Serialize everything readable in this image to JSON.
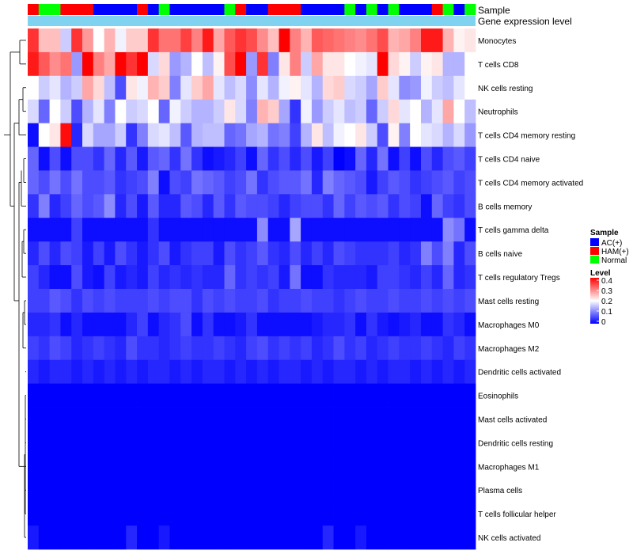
{
  "chart_data": {
    "type": "heatmap",
    "annotation_titles": {
      "sample": "Sample",
      "gene_expression": "Gene expression level"
    },
    "sample_groups": [
      "HAM(+)",
      "Normal",
      "Normal",
      "HAM(+)",
      "HAM(+)",
      "HAM(+)",
      "AC(+)",
      "AC(+)",
      "AC(+)",
      "AC(+)",
      "HAM(+)",
      "AC(+)",
      "Normal",
      "AC(+)",
      "AC(+)",
      "AC(+)",
      "AC(+)",
      "AC(+)",
      "Normal",
      "HAM(+)",
      "AC(+)",
      "AC(+)",
      "HAM(+)",
      "HAM(+)",
      "HAM(+)",
      "AC(+)",
      "AC(+)",
      "AC(+)",
      "AC(+)",
      "Normal",
      "AC(+)",
      "Normal",
      "AC(+)",
      "Normal",
      "AC(+)",
      "AC(+)",
      "AC(+)",
      "HAM(+)",
      "Normal",
      "AC(+)",
      "Normal"
    ],
    "rows": [
      {
        "name": "Monocytes",
        "values": [
          0.36,
          0.25,
          0.25,
          0.16,
          0.36,
          0.28,
          0.2,
          0.26,
          0.19,
          0.24,
          0.24,
          0.36,
          0.31,
          0.31,
          0.35,
          0.3,
          0.38,
          0.27,
          0.33,
          0.36,
          0.34,
          0.29,
          0.25,
          0.4,
          0.3,
          0.26,
          0.33,
          0.32,
          0.31,
          0.3,
          0.29,
          0.31,
          0.34,
          0.26,
          0.27,
          0.3,
          0.38,
          0.38,
          0.26,
          0.21,
          0.22
        ]
      },
      {
        "name": "T cells CD8",
        "values": [
          0.38,
          0.33,
          0.29,
          0.31,
          0.12,
          0.4,
          0.3,
          0.27,
          0.4,
          0.36,
          0.4,
          0.17,
          0.23,
          0.12,
          0.14,
          0.2,
          0.15,
          0.21,
          0.34,
          0.4,
          0.12,
          0.36,
          0.1,
          0.22,
          0.3,
          0.16,
          0.27,
          0.22,
          0.22,
          0.2,
          0.19,
          0.18,
          0.4,
          0.23,
          0.21,
          0.16,
          0.21,
          0.22,
          0.14,
          0.14,
          0.2
        ]
      },
      {
        "name": "NK cells resting",
        "values": [
          0.2,
          0.16,
          0.18,
          0.14,
          0.16,
          0.27,
          0.23,
          0.15,
          0.06,
          0.22,
          0.19,
          0.26,
          0.24,
          0.1,
          0.18,
          0.24,
          0.27,
          0.18,
          0.15,
          0.17,
          0.11,
          0.18,
          0.14,
          0.19,
          0.21,
          0.18,
          0.14,
          0.23,
          0.24,
          0.17,
          0.16,
          0.13,
          0.24,
          0.18,
          0.11,
          0.12,
          0.19,
          0.16,
          0.15,
          0.18,
          0.2
        ]
      },
      {
        "name": "Neutrophils",
        "values": [
          0.17,
          0.08,
          0.2,
          0.16,
          0.06,
          0.14,
          0.18,
          0.1,
          0.2,
          0.16,
          0.17,
          0.2,
          0.08,
          0.19,
          0.16,
          0.14,
          0.14,
          0.16,
          0.22,
          0.17,
          0.1,
          0.26,
          0.24,
          0.13,
          0.04,
          0.19,
          0.12,
          0.16,
          0.18,
          0.15,
          0.16,
          0.08,
          0.16,
          0.23,
          0.18,
          0.2,
          0.14,
          0.18,
          0.27,
          0.2,
          0.15
        ]
      },
      {
        "name": "T cells CD4 memory resting",
        "values": [
          0.01,
          0.2,
          0.22,
          0.39,
          0.03,
          0.17,
          0.13,
          0.13,
          0.16,
          0.04,
          0.1,
          0.17,
          0.18,
          0.15,
          0.07,
          0.14,
          0.15,
          0.15,
          0.08,
          0.09,
          0.13,
          0.14,
          0.09,
          0.1,
          0.05,
          0.14,
          0.22,
          0.15,
          0.19,
          0.2,
          0.22,
          0.16,
          0.06,
          0.21,
          0.1,
          0.2,
          0.18,
          0.17,
          0.14,
          0.17,
          0.12
        ]
      },
      {
        "name": "T cells CD4 naive",
        "values": [
          0.08,
          0.01,
          0.06,
          0.01,
          0.06,
          0.06,
          0.04,
          0.08,
          0.03,
          0.07,
          0.02,
          0.07,
          0.08,
          0.04,
          0.09,
          0.04,
          0.01,
          0.02,
          0.03,
          0.05,
          0.01,
          0.08,
          0.04,
          0.06,
          0.03,
          0.06,
          0.02,
          0.05,
          0.0,
          0.01,
          0.08,
          0.03,
          0.09,
          0.01,
          0.05,
          0.01,
          0.06,
          0.03,
          0.06,
          0.07,
          0.05
        ]
      },
      {
        "name": "T cells CD4 memory activated",
        "values": [
          0.08,
          0.06,
          0.09,
          0.06,
          0.09,
          0.06,
          0.06,
          0.07,
          0.04,
          0.05,
          0.06,
          0.1,
          0.01,
          0.06,
          0.05,
          0.09,
          0.08,
          0.07,
          0.05,
          0.06,
          0.09,
          0.04,
          0.06,
          0.07,
          0.07,
          0.09,
          0.03,
          0.1,
          0.08,
          0.07,
          0.06,
          0.02,
          0.05,
          0.07,
          0.06,
          0.04,
          0.05,
          0.06,
          0.07,
          0.05,
          0.06
        ]
      },
      {
        "name": "B cells memory",
        "values": [
          0.04,
          0.1,
          0.03,
          0.05,
          0.08,
          0.06,
          0.07,
          0.11,
          0.03,
          0.06,
          0.02,
          0.07,
          0.03,
          0.03,
          0.07,
          0.06,
          0.03,
          0.07,
          0.04,
          0.07,
          0.06,
          0.06,
          0.05,
          0.03,
          0.05,
          0.06,
          0.06,
          0.04,
          0.08,
          0.05,
          0.07,
          0.06,
          0.07,
          0.04,
          0.06,
          0.05,
          0.01,
          0.08,
          0.05,
          0.04,
          0.06
        ]
      },
      {
        "name": "T cells gamma delta",
        "values": [
          0.01,
          0.01,
          0.01,
          0.01,
          0.05,
          0.01,
          0.01,
          0.01,
          0.01,
          0.01,
          0.01,
          0.04,
          0.01,
          0.01,
          0.01,
          0.01,
          0.01,
          0.01,
          0.01,
          0.01,
          0.01,
          0.11,
          0.01,
          0.01,
          0.13,
          0.01,
          0.01,
          0.01,
          0.01,
          0.01,
          0.01,
          0.01,
          0.01,
          0.01,
          0.01,
          0.01,
          0.01,
          0.01,
          0.11,
          0.09,
          0.01
        ]
      },
      {
        "name": "B cells naive",
        "values": [
          0.03,
          0.06,
          0.03,
          0.06,
          0.05,
          0.02,
          0.05,
          0.02,
          0.06,
          0.04,
          0.02,
          0.04,
          0.06,
          0.02,
          0.04,
          0.05,
          0.05,
          0.02,
          0.06,
          0.04,
          0.05,
          0.07,
          0.04,
          0.03,
          0.06,
          0.03,
          0.05,
          0.03,
          0.06,
          0.05,
          0.04,
          0.04,
          0.04,
          0.05,
          0.03,
          0.04,
          0.1,
          0.06,
          0.1,
          0.03,
          0.06
        ]
      },
      {
        "name": "T cells regulatory  Tregs",
        "values": [
          0.05,
          0.03,
          0.01,
          0.01,
          0.06,
          0.02,
          0.01,
          0.05,
          0.02,
          0.03,
          0.02,
          0.05,
          0.03,
          0.04,
          0.03,
          0.04,
          0.03,
          0.03,
          0.08,
          0.04,
          0.05,
          0.04,
          0.05,
          0.02,
          0.09,
          0.01,
          0.01,
          0.04,
          0.03,
          0.03,
          0.03,
          0.02,
          0.05,
          0.05,
          0.04,
          0.03,
          0.05,
          0.03,
          0.08,
          0.03,
          0.04
        ]
      },
      {
        "name": "Mast cells resting",
        "values": [
          0.05,
          0.05,
          0.07,
          0.06,
          0.04,
          0.06,
          0.05,
          0.06,
          0.05,
          0.05,
          0.05,
          0.06,
          0.05,
          0.06,
          0.06,
          0.04,
          0.06,
          0.05,
          0.06,
          0.05,
          0.05,
          0.06,
          0.04,
          0.05,
          0.05,
          0.06,
          0.05,
          0.05,
          0.04,
          0.05,
          0.06,
          0.05,
          0.05,
          0.06,
          0.05,
          0.05,
          0.06,
          0.05,
          0.06,
          0.05,
          0.06
        ]
      },
      {
        "name": "Macrophages M0",
        "values": [
          0.03,
          0.03,
          0.04,
          0.01,
          0.03,
          0.01,
          0.01,
          0.01,
          0.01,
          0.03,
          0.05,
          0.01,
          0.03,
          0.04,
          0.06,
          0.01,
          0.04,
          0.01,
          0.01,
          0.02,
          0.04,
          0.01,
          0.01,
          0.01,
          0.01,
          0.01,
          0.02,
          0.03,
          0.03,
          0.04,
          0.01,
          0.04,
          0.02,
          0.01,
          0.02,
          0.03,
          0.01,
          0.01,
          0.04,
          0.03,
          0.01
        ]
      },
      {
        "name": "Macrophages M2",
        "values": [
          0.05,
          0.04,
          0.06,
          0.05,
          0.03,
          0.04,
          0.05,
          0.04,
          0.03,
          0.06,
          0.04,
          0.04,
          0.03,
          0.04,
          0.05,
          0.04,
          0.04,
          0.05,
          0.04,
          0.03,
          0.05,
          0.06,
          0.04,
          0.05,
          0.04,
          0.05,
          0.03,
          0.04,
          0.06,
          0.04,
          0.05,
          0.03,
          0.04,
          0.05,
          0.04,
          0.04,
          0.05,
          0.04,
          0.03,
          0.05,
          0.04
        ]
      },
      {
        "name": "Dendritic cells activated",
        "values": [
          0.03,
          0.02,
          0.03,
          0.03,
          0.02,
          0.03,
          0.02,
          0.03,
          0.02,
          0.03,
          0.02,
          0.03,
          0.03,
          0.02,
          0.03,
          0.02,
          0.03,
          0.03,
          0.02,
          0.03,
          0.02,
          0.03,
          0.02,
          0.03,
          0.03,
          0.02,
          0.03,
          0.02,
          0.03,
          0.03,
          0.02,
          0.03,
          0.02,
          0.03,
          0.03,
          0.02,
          0.03,
          0.02,
          0.03,
          0.02,
          0.03
        ]
      },
      {
        "name": "Eosinophils",
        "values": [
          0,
          0,
          0,
          0,
          0,
          0,
          0,
          0,
          0,
          0,
          0,
          0,
          0,
          0,
          0,
          0,
          0,
          0,
          0,
          0,
          0,
          0,
          0,
          0,
          0,
          0,
          0,
          0,
          0,
          0,
          0,
          0,
          0,
          0,
          0,
          0,
          0,
          0,
          0,
          0,
          0
        ]
      },
      {
        "name": "Mast cells activated",
        "values": [
          0,
          0,
          0,
          0,
          0,
          0,
          0,
          0,
          0,
          0,
          0,
          0,
          0,
          0,
          0,
          0,
          0,
          0,
          0,
          0,
          0,
          0,
          0,
          0,
          0,
          0,
          0,
          0,
          0,
          0,
          0,
          0,
          0,
          0,
          0,
          0,
          0,
          0,
          0,
          0,
          0
        ]
      },
      {
        "name": "Dendritic cells resting",
        "values": [
          0,
          0,
          0,
          0,
          0,
          0,
          0,
          0,
          0,
          0,
          0,
          0,
          0,
          0,
          0,
          0,
          0,
          0,
          0,
          0,
          0,
          0,
          0,
          0,
          0,
          0,
          0,
          0,
          0,
          0,
          0,
          0,
          0,
          0,
          0,
          0,
          0,
          0,
          0,
          0,
          0
        ]
      },
      {
        "name": "Macrophages M1",
        "values": [
          0,
          0,
          0,
          0,
          0,
          0,
          0,
          0,
          0,
          0,
          0,
          0,
          0,
          0,
          0,
          0,
          0,
          0,
          0,
          0,
          0,
          0,
          0,
          0,
          0,
          0,
          0,
          0,
          0,
          0,
          0,
          0,
          0,
          0,
          0,
          0,
          0,
          0,
          0,
          0,
          0
        ]
      },
      {
        "name": "Plasma cells",
        "values": [
          0,
          0,
          0,
          0,
          0,
          0,
          0,
          0,
          0,
          0,
          0,
          0,
          0,
          0,
          0,
          0,
          0,
          0,
          0,
          0,
          0,
          0,
          0,
          0,
          0,
          0,
          0,
          0,
          0,
          0,
          0,
          0,
          0,
          0,
          0,
          0,
          0,
          0,
          0,
          0,
          0
        ]
      },
      {
        "name": "T cells follicular helper",
        "values": [
          0,
          0,
          0,
          0,
          0,
          0,
          0,
          0,
          0,
          0,
          0,
          0,
          0,
          0,
          0,
          0,
          0,
          0,
          0,
          0,
          0,
          0,
          0,
          0,
          0,
          0,
          0,
          0,
          0,
          0,
          0,
          0,
          0,
          0,
          0,
          0,
          0,
          0,
          0,
          0,
          0
        ]
      },
      {
        "name": "NK cells activated",
        "values": [
          0.02,
          0,
          0,
          0,
          0,
          0,
          0,
          0,
          0,
          0.03,
          0,
          0,
          0.02,
          0,
          0,
          0,
          0,
          0,
          0,
          0,
          0,
          0,
          0,
          0,
          0,
          0,
          0,
          0.03,
          0,
          0,
          0.02,
          0,
          0,
          0,
          0,
          0,
          0,
          0,
          0,
          0,
          0
        ]
      }
    ],
    "legend": {
      "sample_title": "Sample",
      "sample_entries": [
        {
          "label": "AC(+)",
          "color": "#0000ff"
        },
        {
          "label": "HAM(+)",
          "color": "#ff0000"
        },
        {
          "label": "Normal",
          "color": "#00ff00"
        }
      ],
      "level_title": "Level",
      "level_ticks": [
        "0.4",
        "0.3",
        "0.2",
        "0.1",
        "0"
      ],
      "level_range": [
        0,
        0.4
      ],
      "colors": {
        "low": "#0000ff",
        "mid": "#ffffff",
        "high": "#ff0000"
      },
      "mid_value": 0.2
    },
    "annotation_colors": {
      "gene_expression_bar": "#7fd3f0"
    }
  }
}
